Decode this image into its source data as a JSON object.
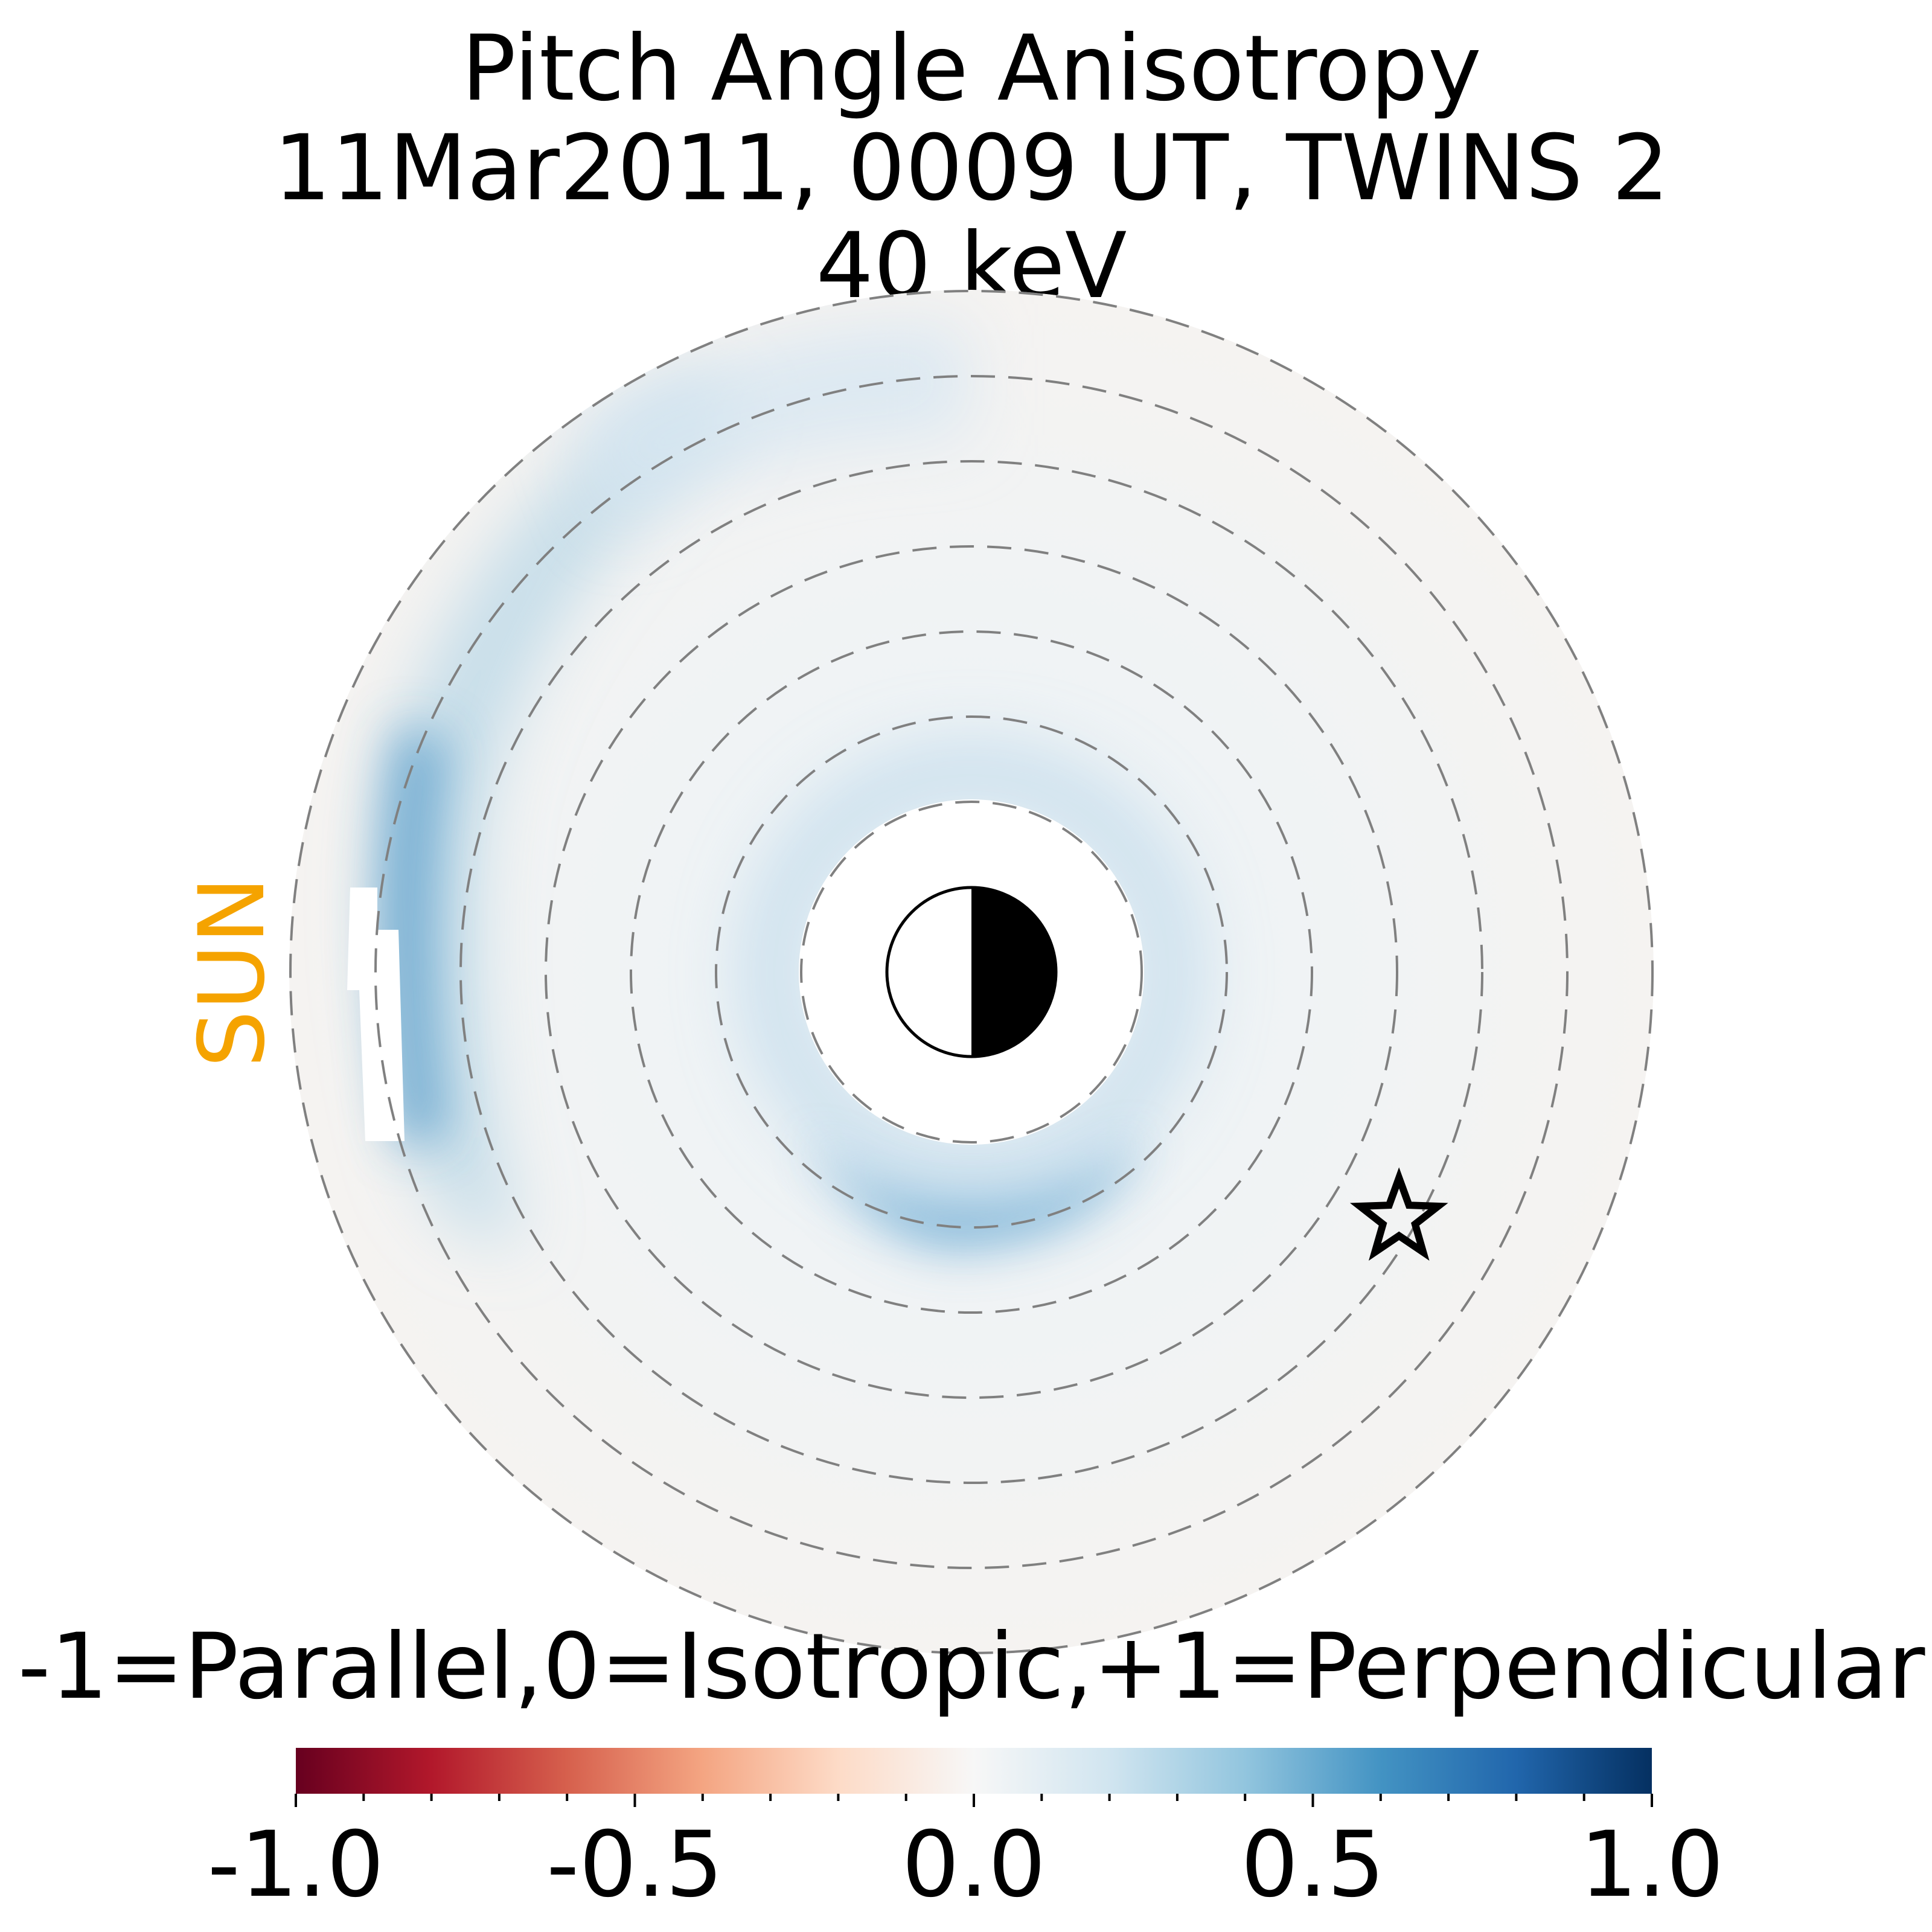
{
  "chart_data": {
    "type": "heatmap",
    "title": "Pitch Angle Anisotropy",
    "subtitle": "11Mar2011, 0009 UT,  TWINS 2",
    "energy": "40 keV",
    "sun_label": "SUN",
    "colorbar": {
      "label": "-1=Parallel,0=Isotropic,+1=Perpendicular",
      "range": [
        -1.0,
        1.0
      ],
      "ticks": [
        -1.0,
        -0.5,
        0.0,
        0.5,
        1.0
      ],
      "tick_labels": [
        "-1.0",
        "-0.5",
        "0.0",
        "0.5",
        "1.0"
      ],
      "colormap": [
        "#67001f",
        "#b2182b",
        "#d6604d",
        "#f4a582",
        "#fddbc7",
        "#f7f7f7",
        "#d1e5f0",
        "#92c5de",
        "#4393c3",
        "#2166ac",
        "#053061"
      ]
    },
    "radial_gridlines": [
      2,
      3,
      4,
      5,
      6,
      7,
      8
    ],
    "grid_style": "dashed",
    "sun_direction": "left",
    "observer_marker": "star",
    "observer_position": {
      "radius": 5.8,
      "mlt_hours": 2.0
    },
    "anisotropy_features": [
      {
        "region": "inner ring (near Earth)",
        "value": 0.15
      },
      {
        "region": "dusk inner edge",
        "value": 0.45
      },
      {
        "region": "dayside outer edge",
        "value": 0.6
      },
      {
        "region": "dawn / nightside",
        "value": 0.0
      },
      {
        "region": "nightside outer",
        "value": -0.03
      }
    ]
  }
}
